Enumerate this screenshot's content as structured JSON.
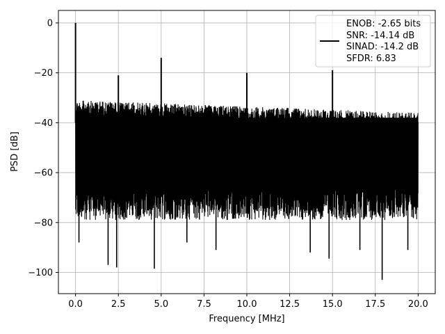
{
  "chart_data": {
    "type": "line",
    "title": "",
    "xlabel": "Frequency [MHz]",
    "ylabel": "PSD [dB]",
    "xlim": [
      -1,
      21
    ],
    "ylim": [
      -108.5,
      5
    ],
    "x_ticks": [
      0.0,
      2.5,
      5.0,
      7.5,
      10.0,
      12.5,
      15.0,
      17.5,
      20.0
    ],
    "x_tick_labels": [
      "0.0",
      "2.5",
      "5.0",
      "7.5",
      "10.0",
      "12.5",
      "15.0",
      "17.5",
      "20.0"
    ],
    "y_ticks": [
      0,
      -20,
      -40,
      -60,
      -80,
      -100
    ],
    "y_tick_labels": [
      "0",
      "−20",
      "−40",
      "−60",
      "−80",
      "−100"
    ],
    "grid": true,
    "legend_position": "upper-right",
    "legend_entries": [
      "ENOB: -2.65 bits",
      "SNR: -14.14 dB",
      "SINAD: -14.2 dB",
      "SFDR: 6.83"
    ],
    "series": [
      {
        "color": "#000000",
        "x_range": [
          0,
          20
        ],
        "noise_floor_upper_start": -31,
        "noise_floor_upper_end": -36,
        "noise_floor_lower_typical": -72,
        "spikes": [
          {
            "x": 0.0,
            "y": 0
          },
          {
            "x": 2.5,
            "y": -21
          },
          {
            "x": 5.0,
            "y": -14
          },
          {
            "x": 10.0,
            "y": -20
          },
          {
            "x": 15.0,
            "y": -19
          }
        ],
        "deep_dips": [
          {
            "x": 0.2,
            "y": -88
          },
          {
            "x": 1.9,
            "y": -97
          },
          {
            "x": 2.4,
            "y": -98
          },
          {
            "x": 4.6,
            "y": -98.5
          },
          {
            "x": 6.5,
            "y": -88
          },
          {
            "x": 8.2,
            "y": -91
          },
          {
            "x": 13.7,
            "y": -92
          },
          {
            "x": 14.8,
            "y": -94.5
          },
          {
            "x": 16.6,
            "y": -91
          },
          {
            "x": 17.9,
            "y": -103
          },
          {
            "x": 19.4,
            "y": -91
          }
        ]
      }
    ]
  }
}
